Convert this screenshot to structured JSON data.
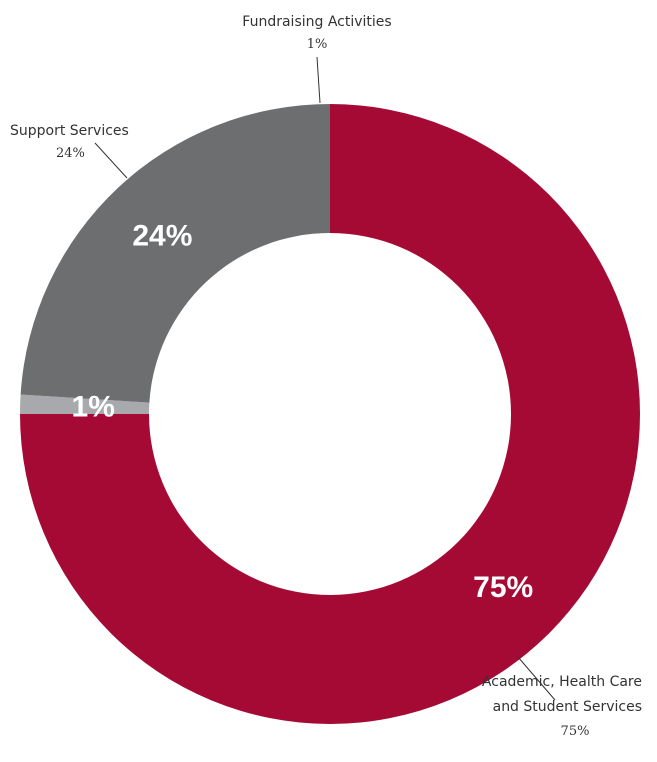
{
  "chart_data": {
    "type": "pie",
    "style": "donut",
    "colors": {
      "Academic, Health Care and Student Services": "#a50a35",
      "Support Services": "#6d6e70",
      "Fundraising Activities": "#a7a9ac"
    },
    "slices": [
      {
        "key": "academic",
        "name_lines": [
          "Academic, Health Care",
          "and Student Services"
        ],
        "value": 75,
        "inner_label": "75%",
        "outer_label": "75%",
        "color": "#a50a35"
      },
      {
        "key": "fundraising",
        "name_lines": [
          "Fundraising Activities"
        ],
        "value": 1,
        "inner_label": "1%",
        "outer_label": "1%",
        "color": "#a7a9ac"
      },
      {
        "key": "support",
        "name_lines": [
          "Support Services"
        ],
        "value": 24,
        "inner_label": "24%",
        "outer_label": "24%",
        "color": "#6d6e70"
      }
    ]
  }
}
